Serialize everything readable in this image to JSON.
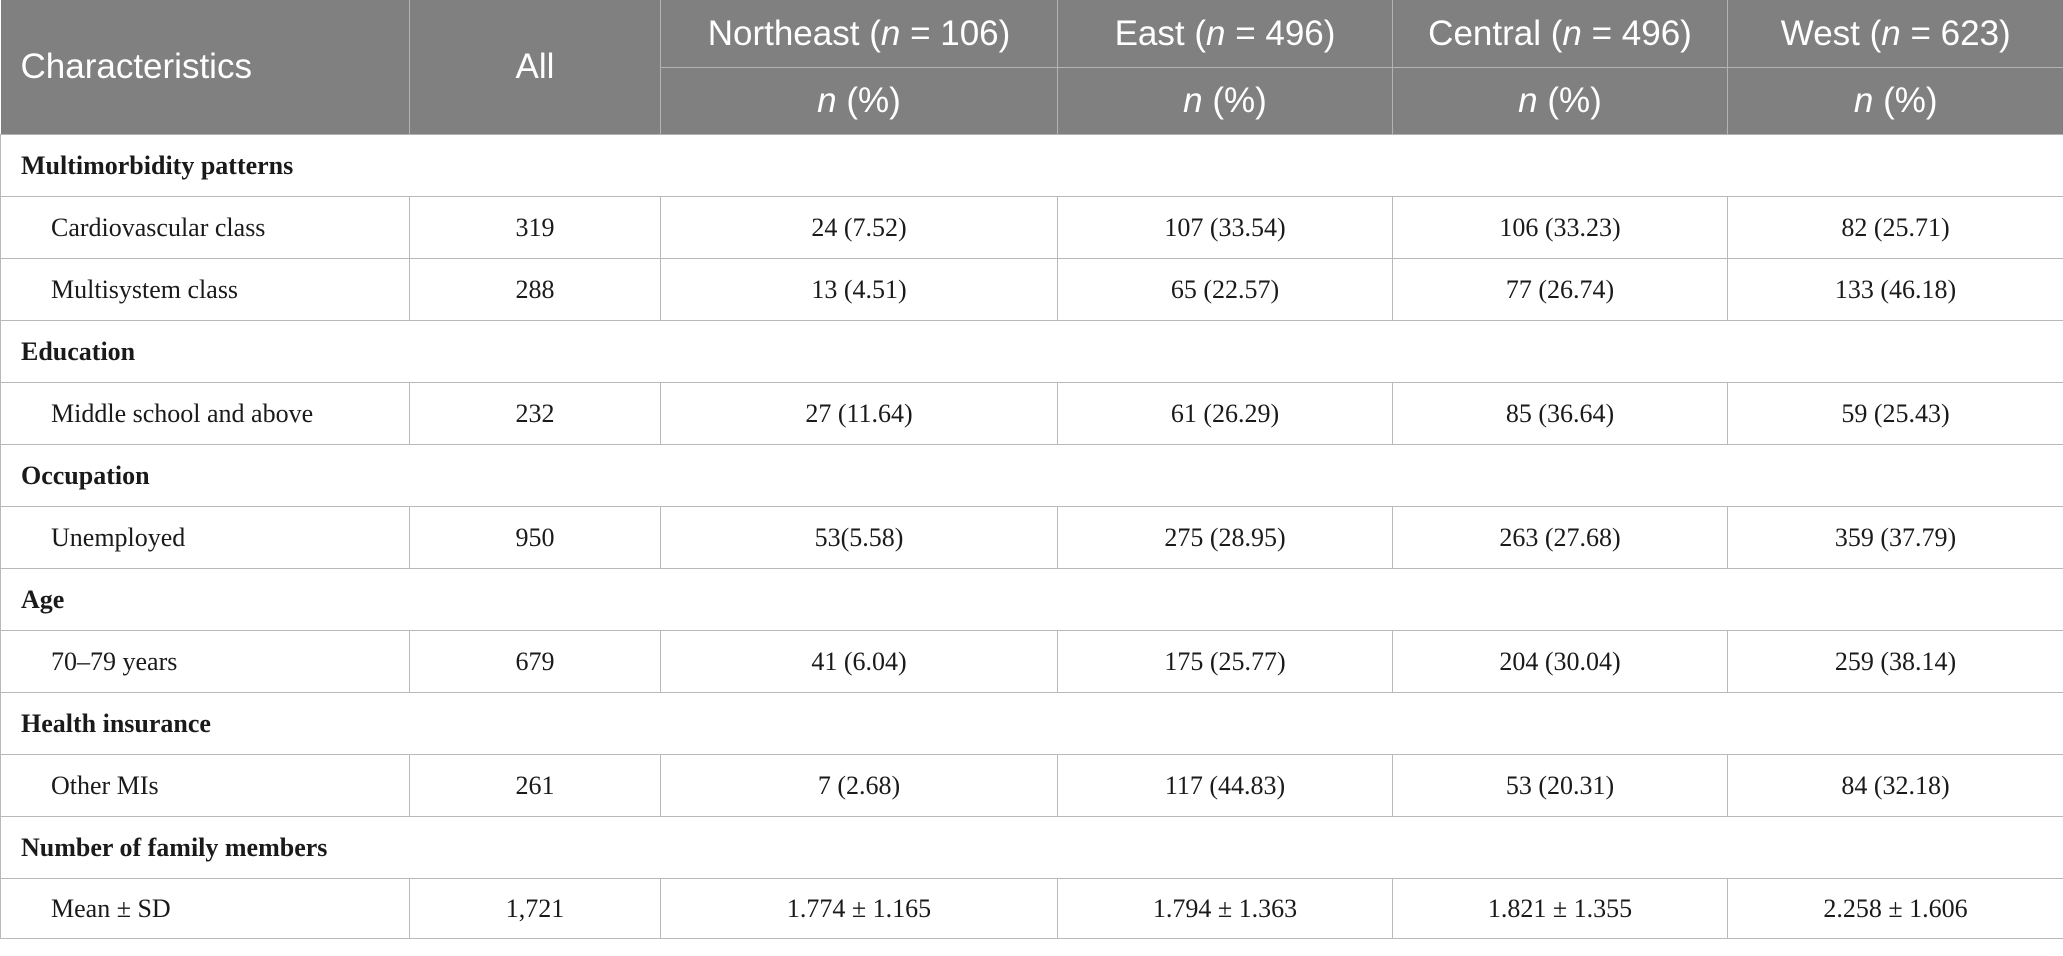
{
  "header": {
    "characteristics": "Characteristics",
    "all": "All",
    "regions": [
      {
        "name": "Northeast",
        "n_label": "n",
        "n_value": "= 106)"
      },
      {
        "name": "East",
        "n_label": "n",
        "n_value": "= 496)"
      },
      {
        "name": "Central",
        "n_label": "n",
        "n_value": "= 496)"
      },
      {
        "name": "West",
        "n_label": "n",
        "n_value": "= 623)"
      }
    ],
    "sub_n": "n",
    "sub_pct": "(%)"
  },
  "sections": [
    {
      "title": "Multimorbidity patterns",
      "rows": [
        {
          "label": "Cardiovascular class",
          "all": "319",
          "northeast": "24 (7.52)",
          "east": "107 (33.54)",
          "central": "106 (33.23)",
          "west": "82 (25.71)"
        },
        {
          "label": "Multisystem class",
          "all": "288",
          "northeast": "13 (4.51)",
          "east": "65 (22.57)",
          "central": "77 (26.74)",
          "west": "133 (46.18)"
        }
      ]
    },
    {
      "title": "Education",
      "rows": [
        {
          "label": "Middle school and above",
          "all": "232",
          "northeast": "27 (11.64)",
          "east": "61 (26.29)",
          "central": "85 (36.64)",
          "west": "59 (25.43)"
        }
      ]
    },
    {
      "title": "Occupation",
      "rows": [
        {
          "label": "Unemployed",
          "all": "950",
          "northeast": "53(5.58)",
          "east": "275 (28.95)",
          "central": "263 (27.68)",
          "west": "359 (37.79)"
        }
      ]
    },
    {
      "title": "Age",
      "rows": [
        {
          "label": "70–79 years",
          "all": "679",
          "northeast": "41 (6.04)",
          "east": "175 (25.77)",
          "central": "204 (30.04)",
          "west": "259 (38.14)"
        }
      ]
    },
    {
      "title": "Health insurance",
      "rows": [
        {
          "label": "Other MIs",
          "all": "261",
          "northeast": "7 (2.68)",
          "east": "117 (44.83)",
          "central": "53 (20.31)",
          "west": "84 (32.18)"
        }
      ]
    },
    {
      "title": "Number of family members",
      "rows": [
        {
          "label": "Mean ± SD",
          "all": "1,721",
          "northeast": "1.774 ± 1.165",
          "east": "1.794 ± 1.363",
          "central": "1.821 ± 1.355",
          "west": "2.258 ± 1.606"
        }
      ]
    }
  ]
}
